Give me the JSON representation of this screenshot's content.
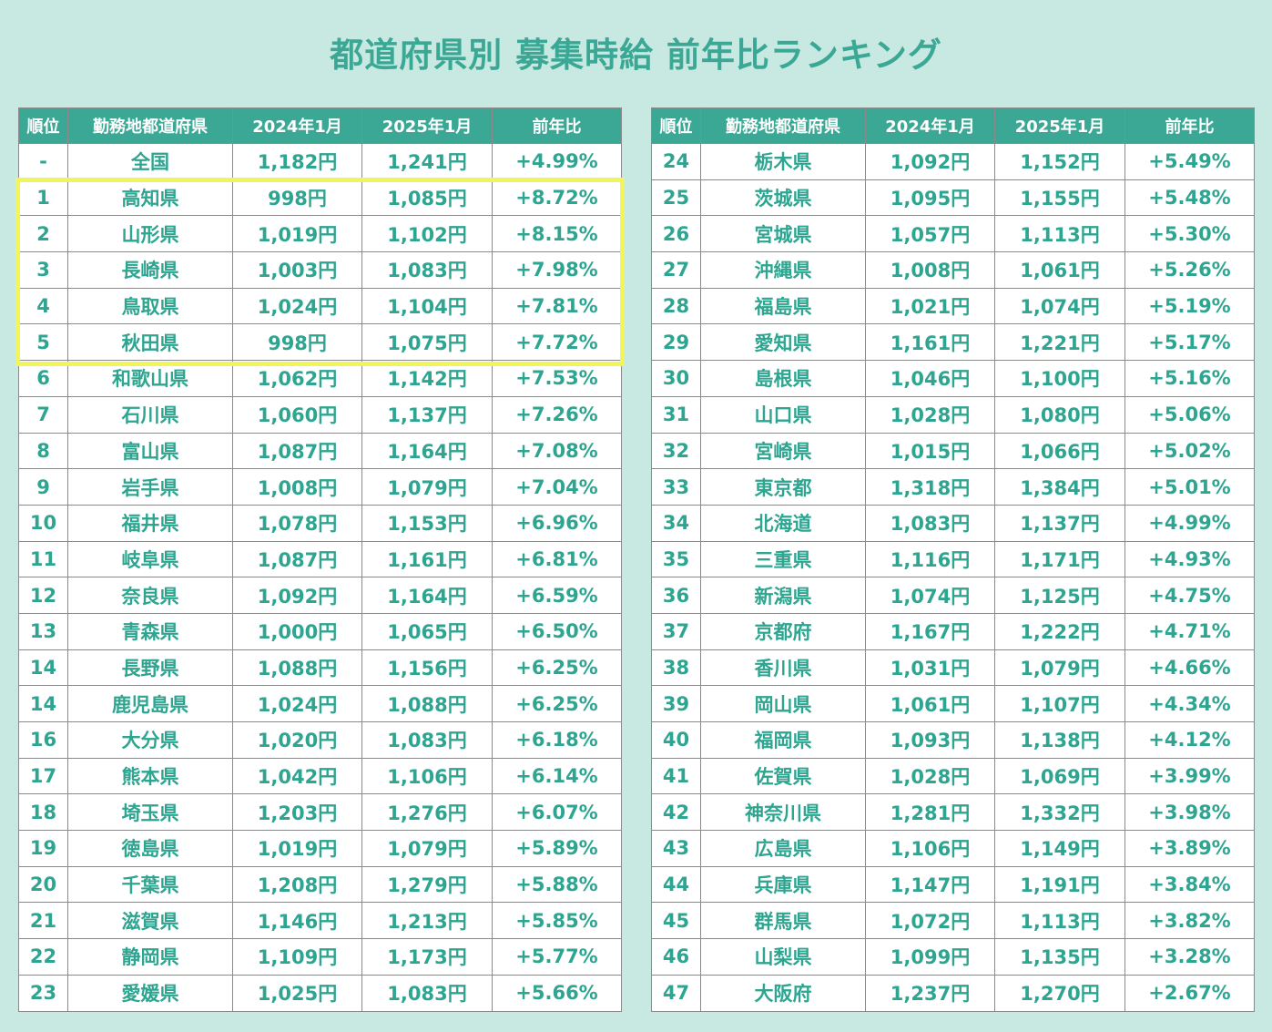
{
  "title": "都道府県別 募集時給 前年比ランキング",
  "colors": {
    "background": "#c8e8e2",
    "accent": "#3aa894",
    "text": "#2ea590",
    "highlight": "#f2f55a"
  },
  "headers": [
    "順位",
    "勤務地都道府県",
    "2024年1月",
    "2025年1月",
    "前年比"
  ],
  "left_rows": [
    {
      "rank": "-",
      "pref": "全国",
      "v2024": "1,182円",
      "v2025": "1,241円",
      "yoy": "+4.99%"
    },
    {
      "rank": "1",
      "pref": "高知県",
      "v2024": "998円",
      "v2025": "1,085円",
      "yoy": "+8.72%"
    },
    {
      "rank": "2",
      "pref": "山形県",
      "v2024": "1,019円",
      "v2025": "1,102円",
      "yoy": "+8.15%"
    },
    {
      "rank": "3",
      "pref": "長崎県",
      "v2024": "1,003円",
      "v2025": "1,083円",
      "yoy": "+7.98%"
    },
    {
      "rank": "4",
      "pref": "鳥取県",
      "v2024": "1,024円",
      "v2025": "1,104円",
      "yoy": "+7.81%"
    },
    {
      "rank": "5",
      "pref": "秋田県",
      "v2024": "998円",
      "v2025": "1,075円",
      "yoy": "+7.72%"
    },
    {
      "rank": "6",
      "pref": "和歌山県",
      "v2024": "1,062円",
      "v2025": "1,142円",
      "yoy": "+7.53%"
    },
    {
      "rank": "7",
      "pref": "石川県",
      "v2024": "1,060円",
      "v2025": "1,137円",
      "yoy": "+7.26%"
    },
    {
      "rank": "8",
      "pref": "富山県",
      "v2024": "1,087円",
      "v2025": "1,164円",
      "yoy": "+7.08%"
    },
    {
      "rank": "9",
      "pref": "岩手県",
      "v2024": "1,008円",
      "v2025": "1,079円",
      "yoy": "+7.04%"
    },
    {
      "rank": "10",
      "pref": "福井県",
      "v2024": "1,078円",
      "v2025": "1,153円",
      "yoy": "+6.96%"
    },
    {
      "rank": "11",
      "pref": "岐阜県",
      "v2024": "1,087円",
      "v2025": "1,161円",
      "yoy": "+6.81%"
    },
    {
      "rank": "12",
      "pref": "奈良県",
      "v2024": "1,092円",
      "v2025": "1,164円",
      "yoy": "+6.59%"
    },
    {
      "rank": "13",
      "pref": "青森県",
      "v2024": "1,000円",
      "v2025": "1,065円",
      "yoy": "+6.50%"
    },
    {
      "rank": "14",
      "pref": "長野県",
      "v2024": "1,088円",
      "v2025": "1,156円",
      "yoy": "+6.25%"
    },
    {
      "rank": "14",
      "pref": "鹿児島県",
      "v2024": "1,024円",
      "v2025": "1,088円",
      "yoy": "+6.25%"
    },
    {
      "rank": "16",
      "pref": "大分県",
      "v2024": "1,020円",
      "v2025": "1,083円",
      "yoy": "+6.18%"
    },
    {
      "rank": "17",
      "pref": "熊本県",
      "v2024": "1,042円",
      "v2025": "1,106円",
      "yoy": "+6.14%"
    },
    {
      "rank": "18",
      "pref": "埼玉県",
      "v2024": "1,203円",
      "v2025": "1,276円",
      "yoy": "+6.07%"
    },
    {
      "rank": "19",
      "pref": "徳島県",
      "v2024": "1,019円",
      "v2025": "1,079円",
      "yoy": "+5.89%"
    },
    {
      "rank": "20",
      "pref": "千葉県",
      "v2024": "1,208円",
      "v2025": "1,279円",
      "yoy": "+5.88%"
    },
    {
      "rank": "21",
      "pref": "滋賀県",
      "v2024": "1,146円",
      "v2025": "1,213円",
      "yoy": "+5.85%"
    },
    {
      "rank": "22",
      "pref": "静岡県",
      "v2024": "1,109円",
      "v2025": "1,173円",
      "yoy": "+5.77%"
    },
    {
      "rank": "23",
      "pref": "愛媛県",
      "v2024": "1,025円",
      "v2025": "1,083円",
      "yoy": "+5.66%"
    }
  ],
  "right_rows": [
    {
      "rank": "24",
      "pref": "栃木県",
      "v2024": "1,092円",
      "v2025": "1,152円",
      "yoy": "+5.49%"
    },
    {
      "rank": "25",
      "pref": "茨城県",
      "v2024": "1,095円",
      "v2025": "1,155円",
      "yoy": "+5.48%"
    },
    {
      "rank": "26",
      "pref": "宮城県",
      "v2024": "1,057円",
      "v2025": "1,113円",
      "yoy": "+5.30%"
    },
    {
      "rank": "27",
      "pref": "沖縄県",
      "v2024": "1,008円",
      "v2025": "1,061円",
      "yoy": "+5.26%"
    },
    {
      "rank": "28",
      "pref": "福島県",
      "v2024": "1,021円",
      "v2025": "1,074円",
      "yoy": "+5.19%"
    },
    {
      "rank": "29",
      "pref": "愛知県",
      "v2024": "1,161円",
      "v2025": "1,221円",
      "yoy": "+5.17%"
    },
    {
      "rank": "30",
      "pref": "島根県",
      "v2024": "1,046円",
      "v2025": "1,100円",
      "yoy": "+5.16%"
    },
    {
      "rank": "31",
      "pref": "山口県",
      "v2024": "1,028円",
      "v2025": "1,080円",
      "yoy": "+5.06%"
    },
    {
      "rank": "32",
      "pref": "宮崎県",
      "v2024": "1,015円",
      "v2025": "1,066円",
      "yoy": "+5.02%"
    },
    {
      "rank": "33",
      "pref": "東京都",
      "v2024": "1,318円",
      "v2025": "1,384円",
      "yoy": "+5.01%"
    },
    {
      "rank": "34",
      "pref": "北海道",
      "v2024": "1,083円",
      "v2025": "1,137円",
      "yoy": "+4.99%"
    },
    {
      "rank": "35",
      "pref": "三重県",
      "v2024": "1,116円",
      "v2025": "1,171円",
      "yoy": "+4.93%"
    },
    {
      "rank": "36",
      "pref": "新潟県",
      "v2024": "1,074円",
      "v2025": "1,125円",
      "yoy": "+4.75%"
    },
    {
      "rank": "37",
      "pref": "京都府",
      "v2024": "1,167円",
      "v2025": "1,222円",
      "yoy": "+4.71%"
    },
    {
      "rank": "38",
      "pref": "香川県",
      "v2024": "1,031円",
      "v2025": "1,079円",
      "yoy": "+4.66%"
    },
    {
      "rank": "39",
      "pref": "岡山県",
      "v2024": "1,061円",
      "v2025": "1,107円",
      "yoy": "+4.34%"
    },
    {
      "rank": "40",
      "pref": "福岡県",
      "v2024": "1,093円",
      "v2025": "1,138円",
      "yoy": "+4.12%"
    },
    {
      "rank": "41",
      "pref": "佐賀県",
      "v2024": "1,028円",
      "v2025": "1,069円",
      "yoy": "+3.99%"
    },
    {
      "rank": "42",
      "pref": "神奈川県",
      "v2024": "1,281円",
      "v2025": "1,332円",
      "yoy": "+3.98%"
    },
    {
      "rank": "43",
      "pref": "広島県",
      "v2024": "1,106円",
      "v2025": "1,149円",
      "yoy": "+3.89%"
    },
    {
      "rank": "44",
      "pref": "兵庫県",
      "v2024": "1,147円",
      "v2025": "1,191円",
      "yoy": "+3.84%"
    },
    {
      "rank": "45",
      "pref": "群馬県",
      "v2024": "1,072円",
      "v2025": "1,113円",
      "yoy": "+3.82%"
    },
    {
      "rank": "46",
      "pref": "山梨県",
      "v2024": "1,099円",
      "v2025": "1,135円",
      "yoy": "+3.28%"
    },
    {
      "rank": "47",
      "pref": "大阪府",
      "v2024": "1,237円",
      "v2025": "1,270円",
      "yoy": "+2.67%"
    }
  ]
}
